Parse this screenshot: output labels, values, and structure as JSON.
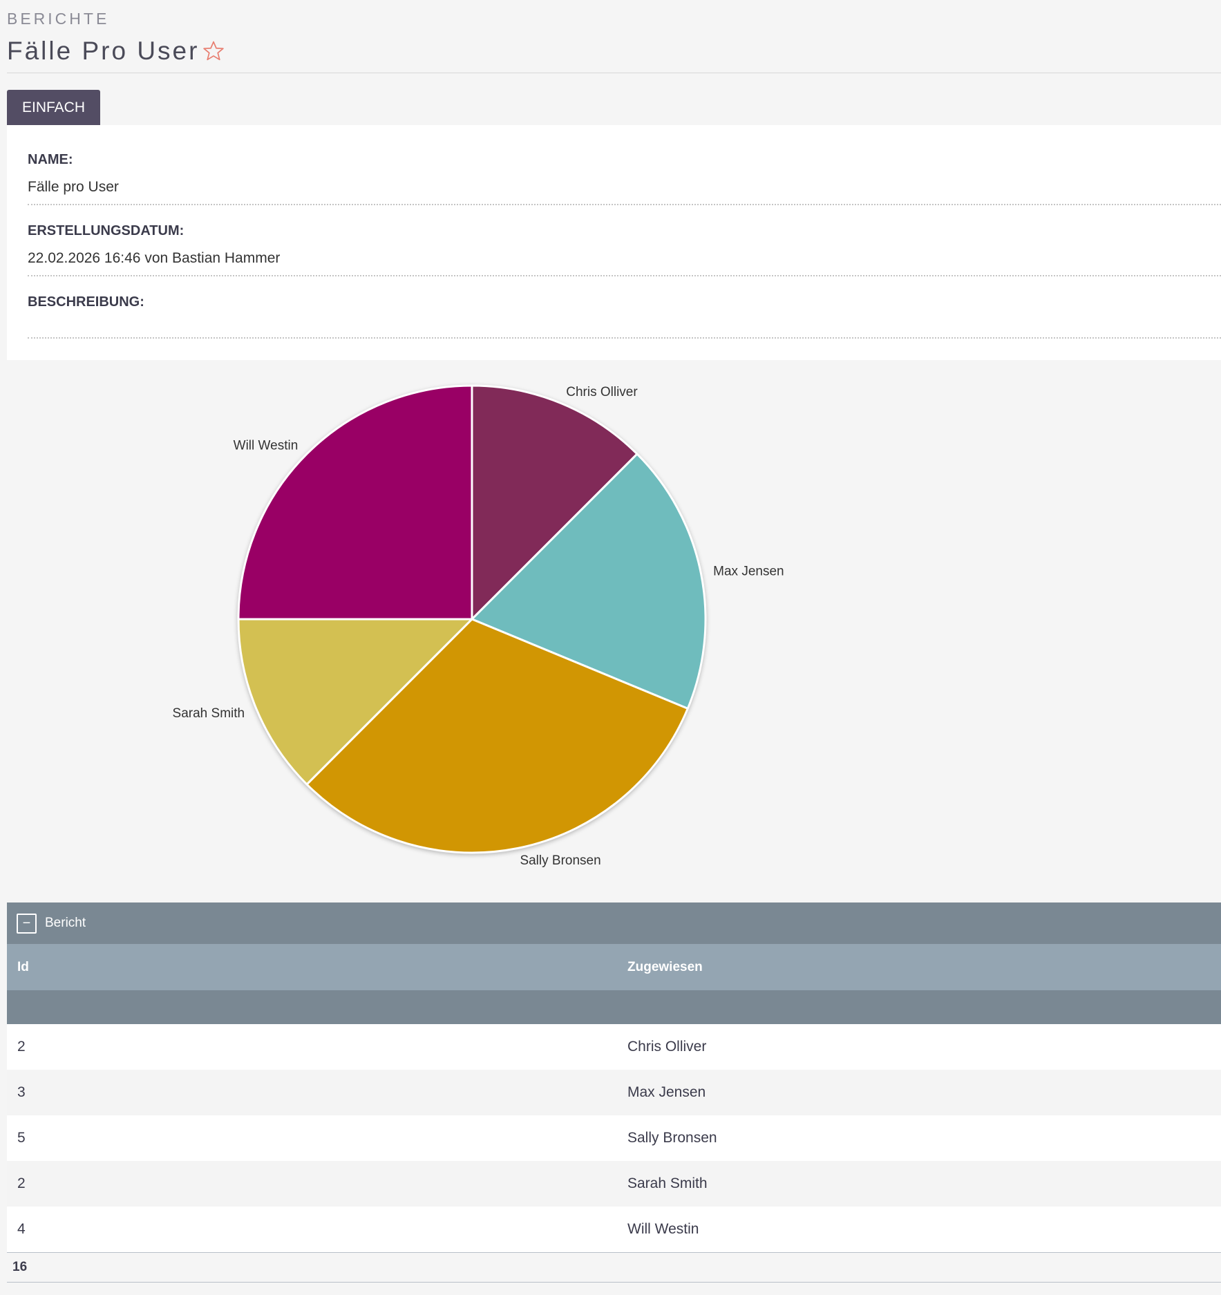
{
  "header": {
    "breadcrumb": "BERICHTE",
    "title": "Fälle Pro User"
  },
  "tabs": [
    {
      "label": "EINFACH"
    }
  ],
  "details": {
    "name_label": "NAME:",
    "name_value": "Fälle pro User",
    "created_label": "ERSTELLUNGSDATUM:",
    "created_value": "22.02.2026 16:46 von Bastian Hammer",
    "description_label": "BESCHREIBUNG:",
    "description_value": ""
  },
  "chart_data": {
    "type": "pie",
    "categories": [
      "Chris Olliver",
      "Max Jensen",
      "Sally Bronsen",
      "Sarah Smith",
      "Will Westin"
    ],
    "values": [
      2,
      3,
      5,
      2,
      4
    ],
    "colors": [
      "#812a58",
      "#6fbcbd",
      "#d19603",
      "#d3c052",
      "#990065"
    ]
  },
  "report": {
    "section_title": "Bericht",
    "toggle_symbol": "−",
    "columns": [
      "Id",
      "Zugewiesen"
    ],
    "rows": [
      {
        "id": "2",
        "user": "Chris Olliver"
      },
      {
        "id": "3",
        "user": "Max Jensen"
      },
      {
        "id": "5",
        "user": "Sally Bronsen"
      },
      {
        "id": "2",
        "user": "Sarah Smith"
      },
      {
        "id": "4",
        "user": "Will Westin"
      }
    ],
    "total": "16"
  },
  "colors": {
    "tab_bg": "#534d64",
    "star": "#e87d6f",
    "report_header": "#7a8893",
    "column_header": "#94a5b2"
  }
}
